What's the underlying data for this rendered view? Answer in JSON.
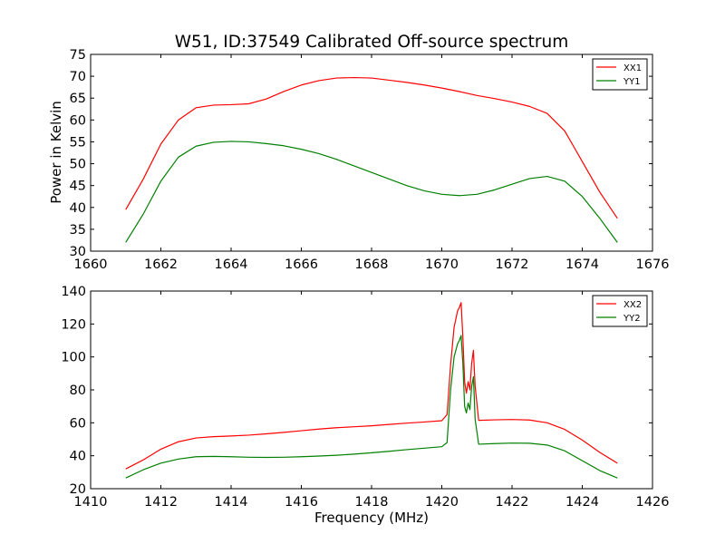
{
  "chart_data": [
    {
      "type": "line",
      "title": "W51, ID:37549 Calibrated Off-source spectrum",
      "xlabel": "",
      "ylabel": "Power in Kelvin",
      "xlim": [
        1660,
        1676
      ],
      "ylim": [
        30,
        75
      ],
      "xticks": [
        "1660",
        "1662",
        "1664",
        "1666",
        "1668",
        "1670",
        "1672",
        "1674",
        "1676"
      ],
      "yticks": [
        "30",
        "35",
        "40",
        "45",
        "50",
        "55",
        "60",
        "65",
        "70",
        "75"
      ],
      "legend_position": "top-right",
      "series": [
        {
          "name": "XX1",
          "color": "#ff0000",
          "x": [
            1661.0,
            1661.5,
            1662.0,
            1662.5,
            1663.0,
            1663.5,
            1664.0,
            1664.5,
            1665.0,
            1665.5,
            1666.0,
            1666.5,
            1667.0,
            1667.5,
            1668.0,
            1668.5,
            1669.0,
            1669.5,
            1670.0,
            1670.5,
            1671.0,
            1671.5,
            1672.0,
            1672.5,
            1673.0,
            1673.5,
            1674.0,
            1674.5,
            1675.0
          ],
          "y": [
            39.5,
            46.5,
            54.5,
            60.0,
            62.8,
            63.4,
            63.5,
            63.7,
            64.8,
            66.5,
            68.0,
            69.0,
            69.6,
            69.7,
            69.6,
            69.1,
            68.6,
            68.0,
            67.3,
            66.5,
            65.6,
            64.9,
            64.1,
            63.1,
            61.5,
            57.5,
            50.5,
            43.5,
            37.5
          ]
        },
        {
          "name": "YY1",
          "color": "#008000",
          "x": [
            1661.0,
            1661.5,
            1662.0,
            1662.5,
            1663.0,
            1663.5,
            1664.0,
            1664.5,
            1665.0,
            1665.5,
            1666.0,
            1666.5,
            1667.0,
            1667.5,
            1668.0,
            1668.5,
            1669.0,
            1669.5,
            1670.0,
            1670.5,
            1671.0,
            1671.5,
            1672.0,
            1672.5,
            1673.0,
            1673.5,
            1674.0,
            1674.5,
            1675.0
          ],
          "y": [
            32.0,
            38.5,
            46.0,
            51.5,
            54.0,
            54.9,
            55.1,
            55.0,
            54.6,
            54.1,
            53.3,
            52.3,
            51.0,
            49.5,
            48.0,
            46.5,
            45.0,
            43.8,
            43.0,
            42.7,
            43.0,
            44.0,
            45.3,
            46.6,
            47.1,
            46.0,
            42.5,
            37.5,
            32.0
          ]
        }
      ]
    },
    {
      "type": "line",
      "title": "",
      "xlabel": "Frequency (MHz)",
      "ylabel": "",
      "xlim": [
        1410,
        1426
      ],
      "ylim": [
        20,
        140
      ],
      "xticks": [
        "1410",
        "1412",
        "1414",
        "1416",
        "1418",
        "1420",
        "1422",
        "1424",
        "1426"
      ],
      "yticks": [
        "20",
        "40",
        "60",
        "80",
        "100",
        "120",
        "140"
      ],
      "legend_position": "top-right",
      "series": [
        {
          "name": "XX2",
          "color": "#ff0000",
          "x": [
            1411.0,
            1411.5,
            1412.0,
            1412.5,
            1413.0,
            1413.5,
            1414.0,
            1414.5,
            1415.0,
            1415.5,
            1416.0,
            1416.5,
            1417.0,
            1417.5,
            1418.0,
            1418.5,
            1419.0,
            1419.5,
            1420.0,
            1420.15,
            1420.25,
            1420.35,
            1420.45,
            1420.5,
            1420.55,
            1420.6,
            1420.65,
            1420.7,
            1420.75,
            1420.8,
            1420.85,
            1420.9,
            1420.95,
            1421.05,
            1421.5,
            1422.0,
            1422.5,
            1423.0,
            1423.5,
            1424.0,
            1424.5,
            1425.0
          ],
          "y": [
            32.0,
            37.5,
            44.0,
            48.5,
            50.8,
            51.6,
            52.0,
            52.5,
            53.3,
            54.2,
            55.2,
            56.2,
            57.0,
            57.6,
            58.2,
            59.0,
            59.8,
            60.5,
            61.3,
            65.0,
            95.0,
            118.0,
            128.0,
            130.0,
            133.0,
            112.0,
            85.0,
            78.0,
            85.0,
            80.0,
            96.0,
            104.0,
            82.0,
            61.5,
            61.8,
            62.0,
            61.7,
            60.0,
            56.0,
            49.5,
            42.0,
            35.5
          ]
        },
        {
          "name": "YY2",
          "color": "#008000",
          "x": [
            1411.0,
            1411.5,
            1412.0,
            1412.5,
            1413.0,
            1413.5,
            1414.0,
            1414.5,
            1415.0,
            1415.5,
            1416.0,
            1416.5,
            1417.0,
            1417.5,
            1418.0,
            1418.5,
            1419.0,
            1419.5,
            1420.0,
            1420.15,
            1420.25,
            1420.35,
            1420.45,
            1420.5,
            1420.55,
            1420.6,
            1420.65,
            1420.7,
            1420.75,
            1420.8,
            1420.85,
            1420.9,
            1420.95,
            1421.05,
            1421.5,
            1422.0,
            1422.5,
            1423.0,
            1423.5,
            1424.0,
            1424.5,
            1425.0
          ],
          "y": [
            26.5,
            31.5,
            35.5,
            38.0,
            39.4,
            39.6,
            39.4,
            39.1,
            39.0,
            39.1,
            39.4,
            39.8,
            40.3,
            41.0,
            41.8,
            42.7,
            43.7,
            44.6,
            45.5,
            48.0,
            80.0,
            100.0,
            108.0,
            110.0,
            113.0,
            96.0,
            70.0,
            66.0,
            72.0,
            68.0,
            82.0,
            88.0,
            62.0,
            47.0,
            47.4,
            47.7,
            47.6,
            46.5,
            43.0,
            37.0,
            31.0,
            26.5
          ]
        }
      ]
    }
  ]
}
